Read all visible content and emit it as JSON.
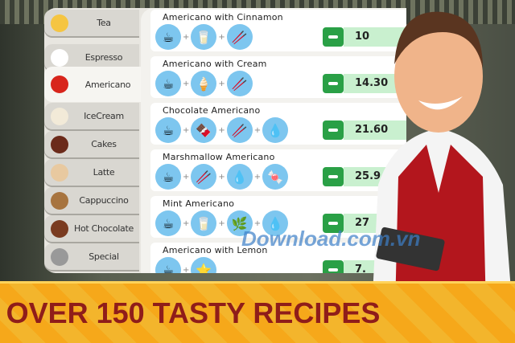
{
  "categories": [
    {
      "label": "Tea",
      "icon": "tea-cup-icon",
      "color": "#f5c542"
    },
    {
      "label": "Espresso",
      "icon": "espresso-cup-icon",
      "color": "#ffffff"
    },
    {
      "label": "Americano",
      "icon": "americano-cup-icon",
      "color": "#d8251c",
      "selected": true
    },
    {
      "label": "IceCream",
      "icon": "ice-cream-icon",
      "color": "#f2ead8"
    },
    {
      "label": "Cakes",
      "icon": "cake-icon",
      "color": "#6b2a1a"
    },
    {
      "label": "Latte",
      "icon": "latte-icon",
      "color": "#e8c9a0"
    },
    {
      "label": "Cappuccino",
      "icon": "cappuccino-icon",
      "color": "#a7743f"
    },
    {
      "label": "Hot Chocolate",
      "icon": "hot-chocolate-icon",
      "color": "#7a3b20"
    },
    {
      "label": "Special",
      "icon": "special-icon",
      "color": "#999999"
    }
  ],
  "recipes": [
    {
      "name": "Americano with Cinnamon",
      "ingredients": [
        "☕",
        "🥛",
        "🥢"
      ],
      "price": "10"
    },
    {
      "name": "Americano with Cream",
      "ingredients": [
        "☕",
        "🍦",
        "🥢"
      ],
      "price": "14.30"
    },
    {
      "name": "Chocolate Americano",
      "ingredients": [
        "☕",
        "🍫",
        "🥢",
        "💧"
      ],
      "price": "21.60"
    },
    {
      "name": "Marshmallow Americano",
      "ingredients": [
        "☕",
        "🥢",
        "💧",
        "🍬"
      ],
      "price": "25.9"
    },
    {
      "name": "Mint Americano",
      "ingredients": [
        "☕",
        "🥛",
        "🌿",
        "💧"
      ],
      "price": "27"
    },
    {
      "name": "Americano with Lemon",
      "ingredients": [
        "☕",
        "⭐"
      ],
      "price": "7."
    }
  ],
  "banner": {
    "text": "OVER 150 TASTY RECIPES"
  },
  "watermark": "Download.com.vn",
  "colors": {
    "accent": "#2aa046",
    "banner": "#f6a81a",
    "banner_text": "#8f1d1a"
  }
}
